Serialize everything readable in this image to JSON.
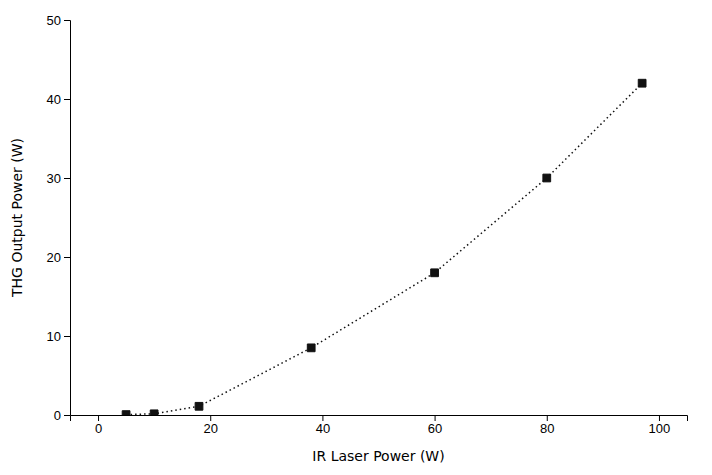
{
  "chart_data": {
    "type": "line",
    "x": [
      5,
      10,
      18,
      38,
      60,
      80,
      97
    ],
    "values": [
      0.05,
      0.15,
      1.1,
      8.5,
      18.0,
      30.0,
      42.0
    ],
    "xlabel": "IR Laser Power (W)",
    "ylabel": "THG Output Power (W)",
    "xlim": [
      -5,
      105
    ],
    "ylim": [
      0,
      50
    ],
    "xticks": [
      0,
      20,
      40,
      60,
      80,
      100
    ],
    "yticks": [
      0,
      10,
      20,
      30,
      40,
      50
    ],
    "color": "#111111",
    "marker": "square",
    "line_style": "dotted",
    "grid": false
  }
}
